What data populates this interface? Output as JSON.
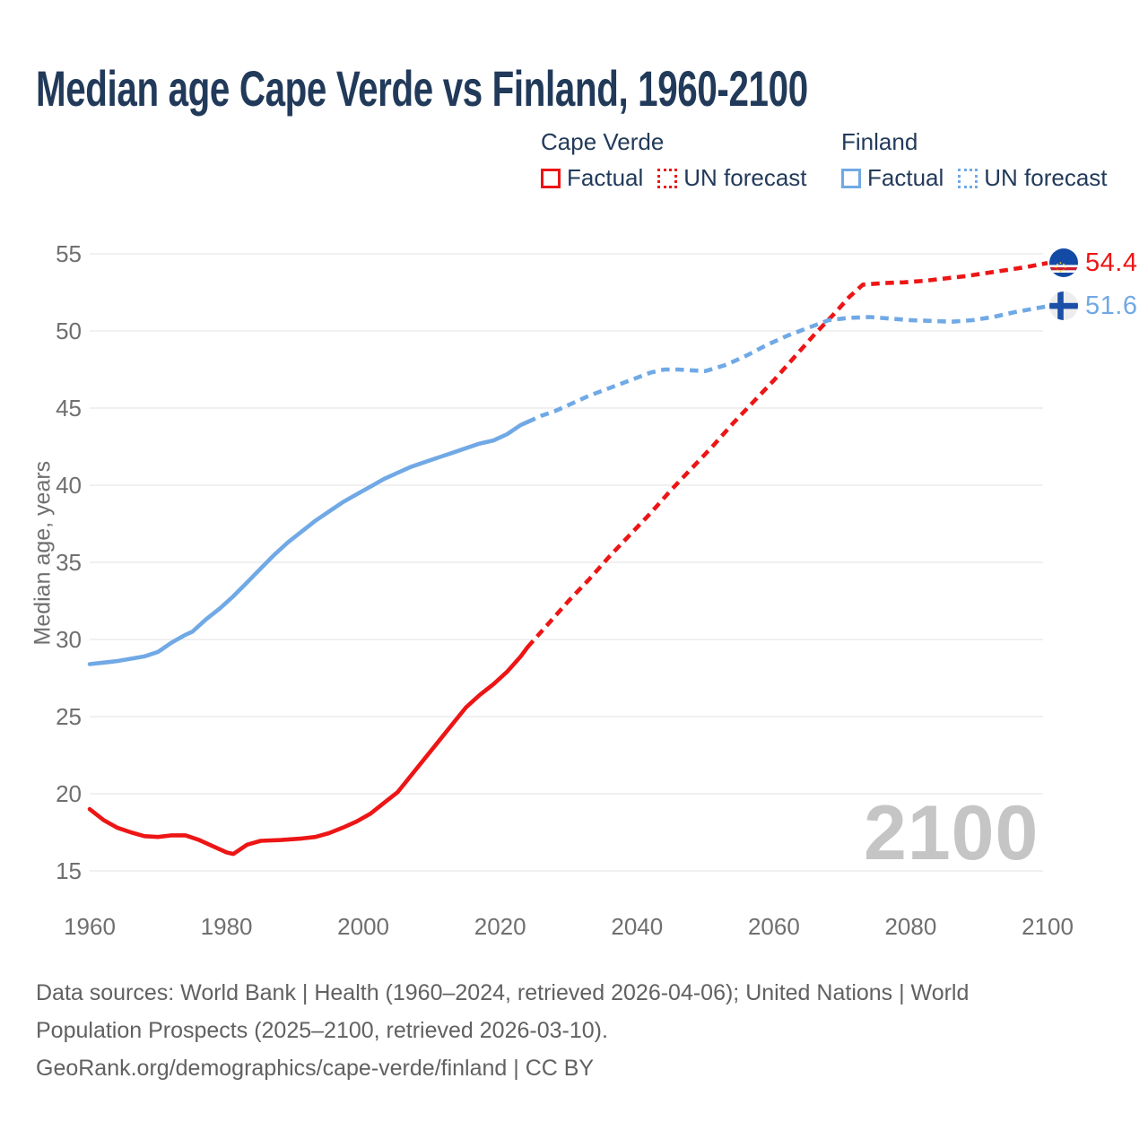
{
  "title": "Median age Cape Verde vs Finland, 1960-2100",
  "legend": {
    "groups": [
      {
        "name": "Cape Verde",
        "color": "#ed1515",
        "items": [
          {
            "label": "Factual",
            "style": "solid"
          },
          {
            "label": "UN forecast",
            "style": "dotted"
          }
        ]
      },
      {
        "name": "Finland",
        "color": "#70a9e5",
        "items": [
          {
            "label": "Factual",
            "style": "solid"
          },
          {
            "label": "UN forecast",
            "style": "dotted"
          }
        ]
      }
    ]
  },
  "watermark": "2100",
  "end_labels": [
    {
      "country": "Cape Verde",
      "value": "54.4",
      "color": "#ed1515",
      "flag": "cape-verde-flag"
    },
    {
      "country": "Finland",
      "value": "51.6",
      "color": "#70a9e5",
      "flag": "finland-flag"
    }
  ],
  "footer": {
    "line1": "Data sources: World Bank | Health (1960–2024, retrieved 2026-04-06); United Nations | World",
    "line2": "Population Prospects (2025–2100, retrieved 2026-03-10).",
    "line3": "GeoRank.org/demographics/cape-verde/finland | CC BY"
  },
  "chart_data": {
    "type": "line",
    "title": "Median age Cape Verde vs Finland, 1960-2100",
    "xlabel": "",
    "ylabel": "Median age, years",
    "xlim": [
      1960,
      2100
    ],
    "ylim": [
      15,
      55
    ],
    "x_ticks": [
      1960,
      1980,
      2000,
      2020,
      2040,
      2060,
      2080,
      2100
    ],
    "y_ticks": [
      15,
      20,
      25,
      30,
      35,
      40,
      45,
      50,
      55
    ],
    "grid": true,
    "legend_position": "top-right",
    "series": [
      {
        "name": "Cape Verde — Factual",
        "color": "#ed1515",
        "style": "solid",
        "points": [
          [
            1960,
            19.0
          ],
          [
            1962,
            18.3
          ],
          [
            1964,
            17.8
          ],
          [
            1966,
            17.5
          ],
          [
            1968,
            17.25
          ],
          [
            1970,
            17.2
          ],
          [
            1972,
            17.3
          ],
          [
            1974,
            17.3
          ],
          [
            1976,
            17.0
          ],
          [
            1978,
            16.6
          ],
          [
            1980,
            16.2
          ],
          [
            1981,
            16.1
          ],
          [
            1983,
            16.7
          ],
          [
            1985,
            16.95
          ],
          [
            1988,
            17.0
          ],
          [
            1991,
            17.1
          ],
          [
            1993,
            17.2
          ],
          [
            1995,
            17.45
          ],
          [
            1997,
            17.8
          ],
          [
            1999,
            18.2
          ],
          [
            2001,
            18.7
          ],
          [
            2003,
            19.4
          ],
          [
            2005,
            20.1
          ],
          [
            2007,
            21.2
          ],
          [
            2009,
            22.3
          ],
          [
            2011,
            23.4
          ],
          [
            2013,
            24.5
          ],
          [
            2015,
            25.6
          ],
          [
            2017,
            26.4
          ],
          [
            2019,
            27.1
          ],
          [
            2021,
            27.9
          ],
          [
            2023,
            28.9
          ],
          [
            2024,
            29.5
          ]
        ]
      },
      {
        "name": "Cape Verde — UN forecast",
        "color": "#ed1515",
        "style": "dashed",
        "points": [
          [
            2024,
            29.5
          ],
          [
            2027,
            31.0
          ],
          [
            2030,
            32.5
          ],
          [
            2033,
            33.9
          ],
          [
            2036,
            35.4
          ],
          [
            2039,
            36.8
          ],
          [
            2042,
            38.2
          ],
          [
            2045,
            39.7
          ],
          [
            2048,
            41.1
          ],
          [
            2051,
            42.5
          ],
          [
            2054,
            44.0
          ],
          [
            2057,
            45.4
          ],
          [
            2060,
            46.8
          ],
          [
            2063,
            48.3
          ],
          [
            2066,
            49.8
          ],
          [
            2069,
            51.2
          ],
          [
            2071,
            52.2
          ],
          [
            2073,
            53.0
          ],
          [
            2076,
            53.1
          ],
          [
            2079,
            53.15
          ],
          [
            2082,
            53.25
          ],
          [
            2085,
            53.4
          ],
          [
            2088,
            53.55
          ],
          [
            2091,
            53.75
          ],
          [
            2094,
            53.95
          ],
          [
            2097,
            54.15
          ],
          [
            2100,
            54.4
          ]
        ]
      },
      {
        "name": "Finland — Factual",
        "color": "#70a9e5",
        "style": "solid",
        "points": [
          [
            1960,
            28.4
          ],
          [
            1962,
            28.5
          ],
          [
            1964,
            28.6
          ],
          [
            1966,
            28.75
          ],
          [
            1968,
            28.9
          ],
          [
            1970,
            29.2
          ],
          [
            1972,
            29.8
          ],
          [
            1974,
            30.3
          ],
          [
            1975,
            30.5
          ],
          [
            1977,
            31.3
          ],
          [
            1979,
            32.0
          ],
          [
            1981,
            32.8
          ],
          [
            1983,
            33.7
          ],
          [
            1985,
            34.6
          ],
          [
            1987,
            35.5
          ],
          [
            1989,
            36.3
          ],
          [
            1991,
            37.0
          ],
          [
            1993,
            37.7
          ],
          [
            1995,
            38.3
          ],
          [
            1997,
            38.9
          ],
          [
            1999,
            39.4
          ],
          [
            2001,
            39.9
          ],
          [
            2003,
            40.4
          ],
          [
            2005,
            40.8
          ],
          [
            2007,
            41.2
          ],
          [
            2009,
            41.5
          ],
          [
            2011,
            41.8
          ],
          [
            2013,
            42.1
          ],
          [
            2015,
            42.4
          ],
          [
            2017,
            42.7
          ],
          [
            2019,
            42.9
          ],
          [
            2021,
            43.3
          ],
          [
            2023,
            43.9
          ],
          [
            2024,
            44.1
          ]
        ]
      },
      {
        "name": "Finland — UN forecast",
        "color": "#70a9e5",
        "style": "dashed",
        "points": [
          [
            2024,
            44.1
          ],
          [
            2026,
            44.5
          ],
          [
            2028,
            44.8
          ],
          [
            2030,
            45.2
          ],
          [
            2033,
            45.8
          ],
          [
            2036,
            46.3
          ],
          [
            2039,
            46.8
          ],
          [
            2042,
            47.3
          ],
          [
            2044,
            47.5
          ],
          [
            2046,
            47.5
          ],
          [
            2048,
            47.45
          ],
          [
            2050,
            47.4
          ],
          [
            2053,
            47.8
          ],
          [
            2056,
            48.4
          ],
          [
            2059,
            49.1
          ],
          [
            2062,
            49.7
          ],
          [
            2065,
            50.2
          ],
          [
            2068,
            50.7
          ],
          [
            2071,
            50.85
          ],
          [
            2074,
            50.9
          ],
          [
            2077,
            50.8
          ],
          [
            2080,
            50.7
          ],
          [
            2083,
            50.65
          ],
          [
            2086,
            50.6
          ],
          [
            2089,
            50.7
          ],
          [
            2092,
            50.9
          ],
          [
            2095,
            51.2
          ],
          [
            2098,
            51.45
          ],
          [
            2100,
            51.6
          ]
        ]
      }
    ]
  }
}
